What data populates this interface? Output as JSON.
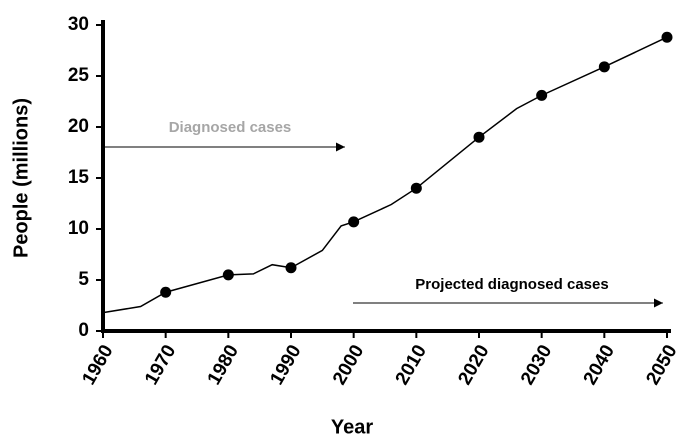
{
  "chart_data": {
    "type": "line",
    "x_label": "Year",
    "y_label": "People (millions)",
    "annotations": [
      "Diagnosed cases",
      "Projected diagnosed cases"
    ],
    "xlim": [
      1960,
      2050
    ],
    "xticks": [
      1960,
      1970,
      1980,
      1990,
      2000,
      2010,
      2020,
      2030,
      2040,
      2050
    ],
    "ylim": [
      0,
      30
    ],
    "yticks": [
      0,
      5,
      10,
      15,
      20,
      25,
      30
    ],
    "series": [
      {
        "style": "line",
        "color": "#000000",
        "x": [
          1960,
          1966,
          1970,
          1980,
          1984,
          1987,
          1990,
          1995,
          1998,
          2000,
          2006,
          2010,
          2020,
          2026,
          2030,
          2040,
          2050
        ],
        "values": [
          1.8,
          2.4,
          3.8,
          5.5,
          5.6,
          6.5,
          6.2,
          7.9,
          10.3,
          10.7,
          12.4,
          14.0,
          19.0,
          21.8,
          23.1,
          25.9,
          28.8
        ]
      },
      {
        "style": "points",
        "color": "#000000",
        "x": [
          1970,
          1980,
          1990,
          2000,
          2010,
          2020,
          2030,
          2040,
          2050
        ],
        "values": [
          3.8,
          5.5,
          6.2,
          10.7,
          14.0,
          19.0,
          23.1,
          25.9,
          28.8
        ]
      }
    ]
  }
}
